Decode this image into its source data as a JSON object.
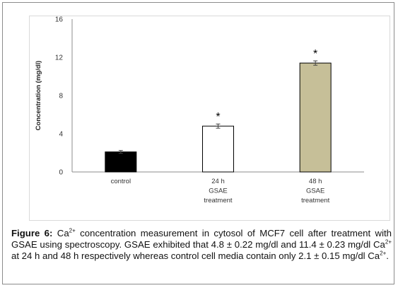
{
  "chart_data": {
    "type": "bar",
    "ylabel": "Concentration (mg/dl)",
    "ylim": [
      0,
      16
    ],
    "yticks": [
      0,
      4,
      8,
      12,
      16
    ],
    "categories": [
      {
        "lines": [
          "control"
        ]
      },
      {
        "lines": [
          "24 h",
          "GSAE",
          "treatment"
        ]
      },
      {
        "lines": [
          "48 h",
          "GSAE",
          "treatment"
        ]
      }
    ],
    "values": [
      2.1,
      4.8,
      11.4
    ],
    "errors": [
      0.15,
      0.22,
      0.23
    ],
    "significance": [
      "",
      "*",
      "*"
    ],
    "colors": [
      "#000000",
      "#ffffff",
      "#c6bf98"
    ],
    "bar_stroke": "#000000",
    "grid": false
  },
  "caption": {
    "label": "Figure 6:",
    "parts": [
      {
        "t": " Ca"
      },
      {
        "sup": "2+"
      },
      {
        "t": " concentration measurement in cytosol of MCF7 cell after treatment with GSAE using spectroscopy. GSAE exhibited that 4.8 ± 0.22 mg/dl and 11.4 ± 0.23 mg/dl Ca"
      },
      {
        "sup": "2+"
      },
      {
        "t": " at 24 h and 48 h respectively whereas control cell media contain only 2.1 ± 0.15 mg/dl Ca"
      },
      {
        "sup": "2+"
      },
      {
        "t": "."
      }
    ]
  }
}
